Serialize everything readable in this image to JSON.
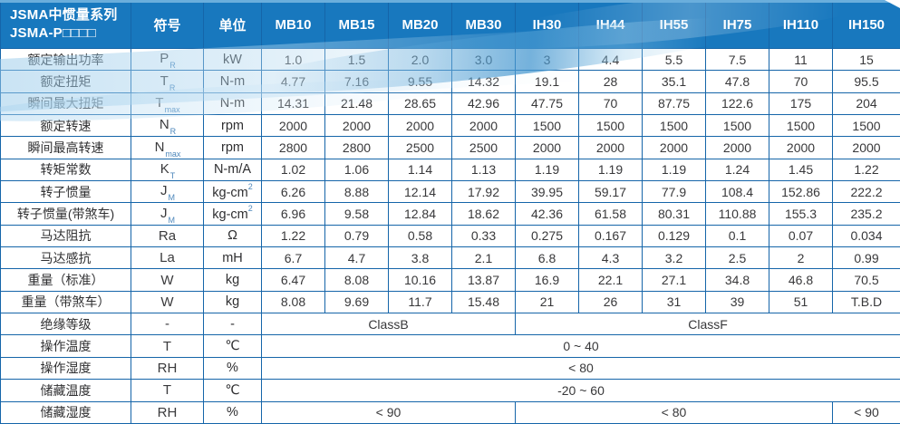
{
  "header": {
    "title_line1": "JSMA中惯量系列",
    "title_line2": "JSMA-P□□□□",
    "symbol_col": "符号",
    "unit_col": "单位",
    "models": [
      "MB10",
      "MB15",
      "MB20",
      "MB30",
      "IH30",
      "IH44",
      "IH55",
      "IH75",
      "IH110",
      "IH150"
    ]
  },
  "colors": {
    "header_bg": "#1878BE",
    "grid_border": "#1565A9",
    "accent_stripe": "#6AAEDC",
    "wave_swoosh": "#4094CE",
    "subscript_blue": "#4D87BB"
  },
  "rows": [
    {
      "label": "额定输出功率",
      "symbol": "P",
      "symbol_sub": "R",
      "unit": "kW",
      "cells": [
        {
          "text": "1.0",
          "span": 1
        },
        {
          "text": "1.5",
          "span": 1
        },
        {
          "text": "2.0",
          "span": 1
        },
        {
          "text": "3.0",
          "span": 1
        },
        {
          "text": "3",
          "span": 1
        },
        {
          "text": "4.4",
          "span": 1
        },
        {
          "text": "5.5",
          "span": 1
        },
        {
          "text": "7.5",
          "span": 1
        },
        {
          "text": "11",
          "span": 1
        },
        {
          "text": "15",
          "span": 1
        }
      ]
    },
    {
      "label": "额定扭矩",
      "symbol": "T",
      "symbol_sub": "R",
      "unit": "N-m",
      "cells": [
        {
          "text": "4.77",
          "span": 1
        },
        {
          "text": "7.16",
          "span": 1
        },
        {
          "text": "9.55",
          "span": 1
        },
        {
          "text": "14.32",
          "span": 1
        },
        {
          "text": "19.1",
          "span": 1
        },
        {
          "text": "28",
          "span": 1
        },
        {
          "text": "35.1",
          "span": 1
        },
        {
          "text": "47.8",
          "span": 1
        },
        {
          "text": "70",
          "span": 1
        },
        {
          "text": "95.5",
          "span": 1
        }
      ]
    },
    {
      "label": "瞬间最大扭矩",
      "symbol": "T",
      "symbol_sub": "max",
      "unit": "N-m",
      "cells": [
        {
          "text": "14.31",
          "span": 1
        },
        {
          "text": "21.48",
          "span": 1
        },
        {
          "text": "28.65",
          "span": 1
        },
        {
          "text": "42.96",
          "span": 1
        },
        {
          "text": "47.75",
          "span": 1
        },
        {
          "text": "70",
          "span": 1
        },
        {
          "text": "87.75",
          "span": 1
        },
        {
          "text": "122.6",
          "span": 1
        },
        {
          "text": "175",
          "span": 1
        },
        {
          "text": "204",
          "span": 1
        }
      ]
    },
    {
      "label": "额定转速",
      "symbol": "N",
      "symbol_sub": "R",
      "unit": "rpm",
      "cells": [
        {
          "text": "2000",
          "span": 1
        },
        {
          "text": "2000",
          "span": 1
        },
        {
          "text": "2000",
          "span": 1
        },
        {
          "text": "2000",
          "span": 1
        },
        {
          "text": "1500",
          "span": 1
        },
        {
          "text": "1500",
          "span": 1
        },
        {
          "text": "1500",
          "span": 1
        },
        {
          "text": "1500",
          "span": 1
        },
        {
          "text": "1500",
          "span": 1
        },
        {
          "text": "1500",
          "span": 1
        }
      ]
    },
    {
      "label": "瞬间最高转速",
      "symbol": "N",
      "symbol_sub": "max",
      "unit": "rpm",
      "cells": [
        {
          "text": "2800",
          "span": 1
        },
        {
          "text": "2800",
          "span": 1
        },
        {
          "text": "2500",
          "span": 1
        },
        {
          "text": "2500",
          "span": 1
        },
        {
          "text": "2000",
          "span": 1
        },
        {
          "text": "2000",
          "span": 1
        },
        {
          "text": "2000",
          "span": 1
        },
        {
          "text": "2000",
          "span": 1
        },
        {
          "text": "2000",
          "span": 1
        },
        {
          "text": "2000",
          "span": 1
        }
      ]
    },
    {
      "label": "转矩常数",
      "symbol": "K",
      "symbol_sub": "T",
      "unit": "N-m/A",
      "cells": [
        {
          "text": "1.02",
          "span": 1
        },
        {
          "text": "1.06",
          "span": 1
        },
        {
          "text": "1.14",
          "span": 1
        },
        {
          "text": "1.13",
          "span": 1
        },
        {
          "text": "1.19",
          "span": 1
        },
        {
          "text": "1.19",
          "span": 1
        },
        {
          "text": "1.19",
          "span": 1
        },
        {
          "text": "1.24",
          "span": 1
        },
        {
          "text": "1.45",
          "span": 1
        },
        {
          "text": "1.22",
          "span": 1
        }
      ]
    },
    {
      "label": "转子惯量",
      "symbol": "J",
      "symbol_sub": "M",
      "unit": "kg-cm",
      "unit_sup": "2",
      "cells": [
        {
          "text": "6.26",
          "span": 1
        },
        {
          "text": "8.88",
          "span": 1
        },
        {
          "text": "12.14",
          "span": 1
        },
        {
          "text": "17.92",
          "span": 1
        },
        {
          "text": "39.95",
          "span": 1
        },
        {
          "text": "59.17",
          "span": 1
        },
        {
          "text": "77.9",
          "span": 1
        },
        {
          "text": "108.4",
          "span": 1
        },
        {
          "text": "152.86",
          "span": 1
        },
        {
          "text": "222.2",
          "span": 1
        }
      ]
    },
    {
      "label": "转子惯量(带煞车)",
      "symbol": "J",
      "symbol_sub": "M",
      "unit": "kg-cm",
      "unit_sup": "2",
      "cells": [
        {
          "text": "6.96",
          "span": 1
        },
        {
          "text": "9.58",
          "span": 1
        },
        {
          "text": "12.84",
          "span": 1
        },
        {
          "text": "18.62",
          "span": 1
        },
        {
          "text": "42.36",
          "span": 1
        },
        {
          "text": "61.58",
          "span": 1
        },
        {
          "text": "80.31",
          "span": 1
        },
        {
          "text": "110.88",
          "span": 1
        },
        {
          "text": "155.3",
          "span": 1
        },
        {
          "text": "235.2",
          "span": 1
        }
      ]
    },
    {
      "label": "马达阻抗",
      "symbol": "Ra",
      "unit": "Ω",
      "cells": [
        {
          "text": "1.22",
          "span": 1
        },
        {
          "text": "0.79",
          "span": 1
        },
        {
          "text": "0.58",
          "span": 1
        },
        {
          "text": "0.33",
          "span": 1
        },
        {
          "text": "0.275",
          "span": 1
        },
        {
          "text": "0.167",
          "span": 1
        },
        {
          "text": "0.129",
          "span": 1
        },
        {
          "text": "0.1",
          "span": 1
        },
        {
          "text": "0.07",
          "span": 1
        },
        {
          "text": "0.034",
          "span": 1
        }
      ]
    },
    {
      "label": "马达感抗",
      "symbol": "La",
      "unit": "mH",
      "cells": [
        {
          "text": "6.7",
          "span": 1
        },
        {
          "text": "4.7",
          "span": 1
        },
        {
          "text": "3.8",
          "span": 1
        },
        {
          "text": "2.1",
          "span": 1
        },
        {
          "text": "6.8",
          "span": 1
        },
        {
          "text": "4.3",
          "span": 1
        },
        {
          "text": "3.2",
          "span": 1
        },
        {
          "text": "2.5",
          "span": 1
        },
        {
          "text": "2",
          "span": 1
        },
        {
          "text": "0.99",
          "span": 1
        }
      ]
    },
    {
      "label": "重量（标准）",
      "symbol": "W",
      "unit": "kg",
      "cells": [
        {
          "text": "6.47",
          "span": 1
        },
        {
          "text": "8.08",
          "span": 1
        },
        {
          "text": "10.16",
          "span": 1
        },
        {
          "text": "13.87",
          "span": 1
        },
        {
          "text": "16.9",
          "span": 1
        },
        {
          "text": "22.1",
          "span": 1
        },
        {
          "text": "27.1",
          "span": 1
        },
        {
          "text": "34.8",
          "span": 1
        },
        {
          "text": "46.8",
          "span": 1
        },
        {
          "text": "70.5",
          "span": 1
        }
      ]
    },
    {
      "label": "重量（带煞车）",
      "symbol": "W",
      "unit": "kg",
      "cells": [
        {
          "text": "8.08",
          "span": 1
        },
        {
          "text": "9.69",
          "span": 1
        },
        {
          "text": "11.7",
          "span": 1
        },
        {
          "text": "15.48",
          "span": 1
        },
        {
          "text": "21",
          "span": 1
        },
        {
          "text": "26",
          "span": 1
        },
        {
          "text": "31",
          "span": 1
        },
        {
          "text": "39",
          "span": 1
        },
        {
          "text": "51",
          "span": 1
        },
        {
          "text": "T.B.D",
          "span": 1
        }
      ]
    },
    {
      "label": "绝缘等级",
      "symbol": "-",
      "unit": "-",
      "cells": [
        {
          "text": "ClassB",
          "span": 4
        },
        {
          "text": "ClassF",
          "span": 6
        }
      ]
    },
    {
      "label": "操作温度",
      "symbol": "T",
      "unit": "℃",
      "cells": [
        {
          "text": "0 ~ 40",
          "span": 10
        }
      ]
    },
    {
      "label": "操作湿度",
      "symbol": "RH",
      "unit": "%",
      "cells": [
        {
          "text": "< 80",
          "span": 10
        }
      ]
    },
    {
      "label": "储藏温度",
      "symbol": "T",
      "unit": "℃",
      "cells": [
        {
          "text": "-20 ~ 60",
          "span": 10
        }
      ]
    },
    {
      "label": "储藏湿度",
      "symbol": "RH",
      "unit": "%",
      "cells": [
        {
          "text": "< 90",
          "span": 4
        },
        {
          "text": "< 80",
          "span": 5
        },
        {
          "text": "< 90",
          "span": 1
        }
      ]
    }
  ]
}
